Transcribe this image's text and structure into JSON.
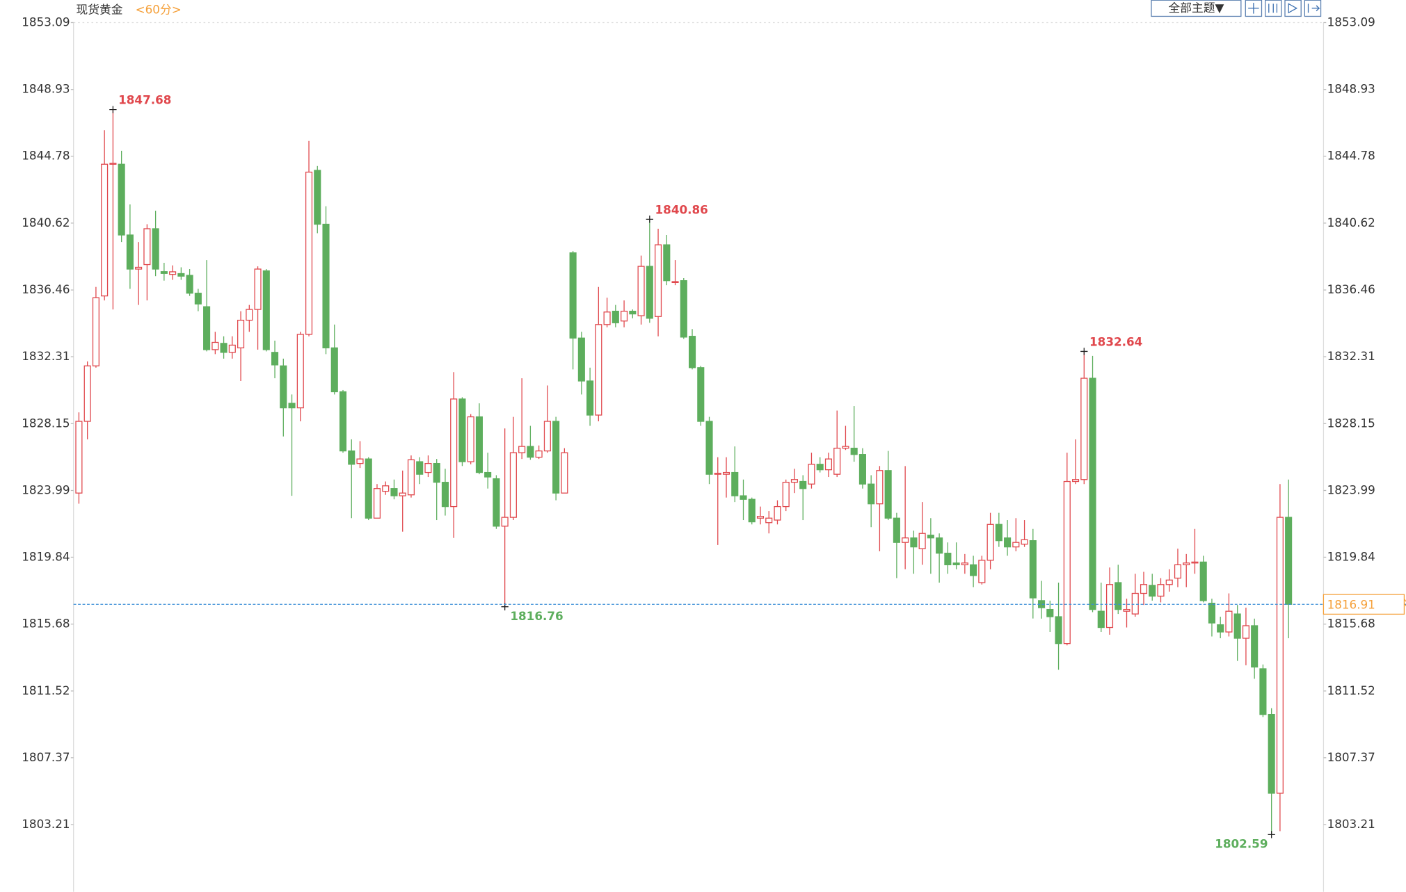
{
  "chart_data": {
    "type": "candlestick",
    "title": "现货黄金",
    "period": "<60分>",
    "theme_button": "全部主题▼",
    "up_color": "#e0474c",
    "down_color": "#5dae5d",
    "price_line_color": "#3b8fd8",
    "price_box_color": "#f5a03a",
    "ylim": [
      1799.03,
      1853.09
    ],
    "yticks": [
      1853.09,
      1848.93,
      1844.78,
      1840.62,
      1836.46,
      1832.31,
      1828.15,
      1823.99,
      1819.84,
      1815.68,
      1811.52,
      1807.37,
      1803.21
    ],
    "candles": [
      [
        1823.83,
        1828.85,
        1823.17,
        1828.29
      ],
      [
        1828.29,
        1832.02,
        1827.17,
        1831.74
      ],
      [
        1831.74,
        1836.65,
        1831.63,
        1835.98
      ],
      [
        1836.09,
        1846.4,
        1835.81,
        1844.28
      ],
      [
        1844.28,
        1847.68,
        1835.25,
        1844.34
      ],
      [
        1844.28,
        1845.12,
        1839.44,
        1839.88
      ],
      [
        1839.88,
        1841.78,
        1836.53,
        1837.76
      ],
      [
        1837.76,
        1839.44,
        1835.53,
        1837.87
      ],
      [
        1838.04,
        1840.55,
        1835.81,
        1840.27
      ],
      [
        1840.27,
        1841.39,
        1837.32,
        1837.76
      ],
      [
        1837.6,
        1838.15,
        1837.04,
        1837.49
      ],
      [
        1837.43,
        1837.99,
        1837.09,
        1837.59
      ],
      [
        1837.48,
        1837.87,
        1837.09,
        1837.32
      ],
      [
        1837.37,
        1837.76,
        1836.09,
        1836.26
      ],
      [
        1836.26,
        1836.53,
        1835.14,
        1835.59
      ],
      [
        1835.42,
        1838.32,
        1832.64,
        1832.75
      ],
      [
        1832.75,
        1833.86,
        1832.47,
        1833.2
      ],
      [
        1833.14,
        1833.58,
        1832.19,
        1832.58
      ],
      [
        1832.58,
        1833.58,
        1832.19,
        1833.03
      ],
      [
        1832.86,
        1835.14,
        1830.8,
        1834.58
      ],
      [
        1834.58,
        1835.53,
        1833.86,
        1835.25
      ],
      [
        1835.25,
        1837.93,
        1832.75,
        1837.76
      ],
      [
        1837.65,
        1837.76,
        1832.64,
        1832.75
      ],
      [
        1832.58,
        1833.31,
        1830.97,
        1831.8
      ],
      [
        1831.74,
        1832.19,
        1827.35,
        1829.13
      ],
      [
        1829.41,
        1829.96,
        1823.66,
        1829.13
      ],
      [
        1829.13,
        1833.86,
        1828.29,
        1833.7
      ],
      [
        1833.7,
        1845.73,
        1833.58,
        1843.79
      ],
      [
        1843.9,
        1844.17,
        1839.99,
        1840.55
      ],
      [
        1840.55,
        1841.67,
        1832.47,
        1832.86
      ],
      [
        1832.86,
        1834.31,
        1829.96,
        1830.13
      ],
      [
        1830.13,
        1830.24,
        1826.34,
        1826.45
      ],
      [
        1826.45,
        1827.17,
        1822.27,
        1825.62
      ],
      [
        1825.67,
        1827.06,
        1825.39,
        1825.95
      ],
      [
        1825.95,
        1826.06,
        1822.15,
        1822.27
      ],
      [
        1822.27,
        1824.39,
        1822.27,
        1824.11
      ],
      [
        1823.94,
        1824.55,
        1823.72,
        1824.28
      ],
      [
        1824.11,
        1824.67,
        1823.44,
        1823.66
      ],
      [
        1823.66,
        1825.23,
        1821.43,
        1823.83
      ],
      [
        1823.72,
        1826.17,
        1823.55,
        1825.9
      ],
      [
        1825.78,
        1826.06,
        1824.39,
        1825.0
      ],
      [
        1825.11,
        1826.17,
        1824.83,
        1825.67
      ],
      [
        1825.67,
        1825.95,
        1822.15,
        1824.5
      ],
      [
        1824.5,
        1825.34,
        1822.43,
        1822.99
      ],
      [
        1822.99,
        1831.35,
        1821.04,
        1829.68
      ],
      [
        1829.68,
        1829.79,
        1825.51,
        1825.78
      ],
      [
        1825.78,
        1828.74,
        1825.62,
        1828.57
      ],
      [
        1828.57,
        1829.41,
        1825.0,
        1825.11
      ],
      [
        1825.11,
        1826.34,
        1824.11,
        1824.83
      ],
      [
        1824.72,
        1824.94,
        1821.6,
        1821.77
      ],
      [
        1821.77,
        1827.85,
        1816.76,
        1822.32
      ],
      [
        1822.32,
        1828.57,
        1822.15,
        1826.34
      ],
      [
        1826.34,
        1830.97,
        1825.95,
        1826.73
      ],
      [
        1826.73,
        1828.01,
        1825.9,
        1826.06
      ],
      [
        1826.06,
        1826.79,
        1825.95,
        1826.45
      ],
      [
        1826.45,
        1830.52,
        1826.34,
        1828.29
      ],
      [
        1828.29,
        1828.57,
        1823.38,
        1823.83
      ],
      [
        1823.83,
        1826.62,
        1823.83,
        1826.34
      ],
      [
        1838.77,
        1838.88,
        1831.52,
        1833.47
      ],
      [
        1833.47,
        1833.86,
        1829.96,
        1830.8
      ],
      [
        1830.8,
        1831.63,
        1828.01,
        1828.68
      ],
      [
        1828.68,
        1836.65,
        1828.29,
        1834.31
      ],
      [
        1834.31,
        1835.98,
        1834.14,
        1835.09
      ],
      [
        1835.14,
        1835.53,
        1834.14,
        1834.42
      ],
      [
        1834.53,
        1835.81,
        1834.14,
        1835.14
      ],
      [
        1835.14,
        1835.25,
        1834.7,
        1834.97
      ],
      [
        1834.86,
        1838.6,
        1834.31,
        1837.93
      ],
      [
        1837.93,
        1840.86,
        1834.42,
        1834.7
      ],
      [
        1834.81,
        1840.27,
        1833.58,
        1839.27
      ],
      [
        1839.27,
        1839.88,
        1836.76,
        1837.04
      ],
      [
        1836.93,
        1838.32,
        1836.76,
        1836.98
      ],
      [
        1837.04,
        1837.2,
        1833.42,
        1833.53
      ],
      [
        1833.58,
        1834.03,
        1831.52,
        1831.63
      ],
      [
        1831.63,
        1831.74,
        1828.01,
        1828.29
      ],
      [
        1828.29,
        1828.57,
        1824.39,
        1825.0
      ],
      [
        1825.0,
        1826.06,
        1820.6,
        1825.06
      ],
      [
        1825.0,
        1826.06,
        1823.55,
        1825.11
      ],
      [
        1825.11,
        1826.73,
        1823.27,
        1823.66
      ],
      [
        1823.66,
        1824.67,
        1822.15,
        1823.44
      ],
      [
        1823.44,
        1823.55,
        1821.88,
        1822.04
      ],
      [
        1822.27,
        1822.99,
        1821.88,
        1822.38
      ],
      [
        1821.99,
        1822.71,
        1821.32,
        1822.27
      ],
      [
        1822.15,
        1823.38,
        1821.88,
        1822.99
      ],
      [
        1822.99,
        1824.67,
        1822.71,
        1824.5
      ],
      [
        1824.5,
        1825.34,
        1823.83,
        1824.67
      ],
      [
        1824.55,
        1824.94,
        1822.15,
        1824.11
      ],
      [
        1824.39,
        1826.34,
        1824.11,
        1825.62
      ],
      [
        1825.62,
        1826.06,
        1825.11,
        1825.28
      ],
      [
        1825.28,
        1826.34,
        1824.83,
        1825.95
      ],
      [
        1825.0,
        1828.96,
        1824.83,
        1826.62
      ],
      [
        1826.62,
        1828.01,
        1826.51,
        1826.73
      ],
      [
        1826.62,
        1829.24,
        1825.78,
        1826.23
      ],
      [
        1826.23,
        1826.62,
        1824.11,
        1824.39
      ],
      [
        1824.39,
        1824.94,
        1821.71,
        1823.16
      ],
      [
        1823.16,
        1825.51,
        1820.21,
        1825.23
      ],
      [
        1825.23,
        1826.45,
        1822.15,
        1822.27
      ],
      [
        1822.27,
        1822.6,
        1818.54,
        1820.76
      ],
      [
        1820.76,
        1825.51,
        1819.09,
        1821.04
      ],
      [
        1821.04,
        1821.49,
        1818.81,
        1820.48
      ],
      [
        1820.37,
        1823.27,
        1819.37,
        1821.32
      ],
      [
        1821.21,
        1822.27,
        1818.81,
        1821.04
      ],
      [
        1821.04,
        1821.32,
        1818.26,
        1820.09
      ],
      [
        1820.09,
        1820.76,
        1818.81,
        1819.37
      ],
      [
        1819.48,
        1820.76,
        1819.09,
        1819.37
      ],
      [
        1819.37,
        1820.04,
        1818.81,
        1819.48
      ],
      [
        1819.37,
        1819.93,
        1817.98,
        1818.7
      ],
      [
        1818.26,
        1819.93,
        1818.14,
        1819.65
      ],
      [
        1819.65,
        1822.6,
        1819.09,
        1821.88
      ],
      [
        1821.88,
        1822.6,
        1820.48,
        1820.87
      ],
      [
        1821.04,
        1822.15,
        1819.93,
        1820.48
      ],
      [
        1820.48,
        1822.27,
        1820.21,
        1820.76
      ],
      [
        1820.65,
        1822.15,
        1820.48,
        1820.93
      ],
      [
        1820.87,
        1821.6,
        1816.03,
        1817.31
      ],
      [
        1817.14,
        1818.37,
        1816.02,
        1816.7
      ],
      [
        1816.59,
        1817.14,
        1815.19,
        1816.14
      ],
      [
        1816.14,
        1818.26,
        1812.84,
        1814.47
      ],
      [
        1814.47,
        1826.34,
        1814.36,
        1824.55
      ],
      [
        1824.55,
        1827.17,
        1824.39,
        1824.67
      ],
      [
        1824.67,
        1832.64,
        1824.39,
        1830.97
      ],
      [
        1830.97,
        1832.36,
        1816.42,
        1816.59
      ],
      [
        1816.48,
        1818.26,
        1815.19,
        1815.47
      ],
      [
        1815.47,
        1819.2,
        1815.02,
        1818.14
      ],
      [
        1818.26,
        1819.37,
        1816.31,
        1816.59
      ],
      [
        1816.48,
        1817.26,
        1815.47,
        1816.59
      ],
      [
        1816.31,
        1818.81,
        1816.14,
        1817.59
      ],
      [
        1817.59,
        1818.93,
        1816.87,
        1818.14
      ],
      [
        1818.09,
        1818.81,
        1817.14,
        1817.42
      ],
      [
        1817.42,
        1818.54,
        1817.03,
        1818.14
      ],
      [
        1818.14,
        1819.09,
        1817.7,
        1818.42
      ],
      [
        1818.54,
        1820.37,
        1817.98,
        1819.37
      ],
      [
        1819.37,
        1820.04,
        1817.98,
        1819.48
      ],
      [
        1819.48,
        1821.6,
        1818.81,
        1819.54
      ],
      [
        1819.54,
        1819.93,
        1817.03,
        1817.14
      ],
      [
        1816.98,
        1817.26,
        1814.91,
        1815.75
      ],
      [
        1815.64,
        1816.14,
        1814.8,
        1815.19
      ],
      [
        1815.19,
        1817.59,
        1814.91,
        1816.48
      ],
      [
        1816.31,
        1816.87,
        1813.39,
        1814.8
      ],
      [
        1814.8,
        1816.7,
        1813.12,
        1815.58
      ],
      [
        1815.58,
        1816.02,
        1812.28,
        1813.01
      ],
      [
        1812.9,
        1813.17,
        1809.9,
        1810.06
      ],
      [
        1810.06,
        1810.45,
        1802.59,
        1805.16
      ],
      [
        1805.16,
        1824.39,
        1802.8,
        1822.32
      ],
      [
        1822.32,
        1824.67,
        1814.8,
        1816.91
      ]
    ]
  }
}
